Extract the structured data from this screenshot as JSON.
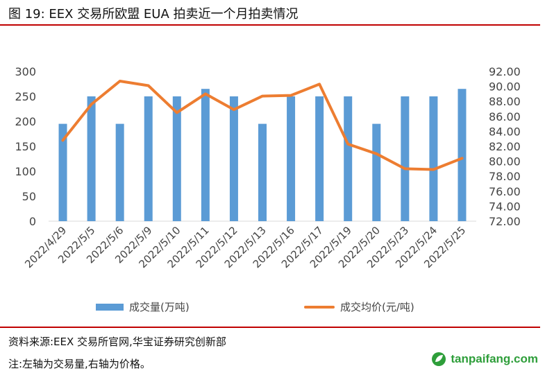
{
  "header": {
    "title": "图 19:  EEX 交易所欧盟 EUA 拍卖近一个月拍卖情况"
  },
  "footer": {
    "source": "资料来源:EEX 交易所官网,华宝证券研究创新部",
    "note": "注:左轴为交易量,右轴为价格。"
  },
  "watermark": {
    "text": "tanpaifang.com"
  },
  "colors": {
    "bar": "#5b9bd5",
    "line": "#ed7d31",
    "rule": "#c00000"
  },
  "chart_data": {
    "type": "bar+line",
    "categories": [
      "2022/4/29",
      "2022/5/5",
      "2022/5/6",
      "2022/5/9",
      "2022/5/10",
      "2022/5/11",
      "2022/5/12",
      "2022/5/13",
      "2022/5/16",
      "2022/5/17",
      "2022/5/19",
      "2022/5/20",
      "2022/5/23",
      "2022/5/24",
      "2022/5/25"
    ],
    "series": [
      {
        "name": "成交量(万吨)",
        "type": "bar",
        "axis": "left",
        "values": [
          195,
          250,
          195,
          250,
          250,
          265,
          250,
          195,
          250,
          250,
          250,
          195,
          250,
          250,
          265
        ]
      },
      {
        "name": "成交均价(元/吨)",
        "type": "line",
        "axis": "right",
        "values": [
          82.8,
          87.6,
          90.7,
          90.1,
          86.5,
          89.0,
          86.9,
          88.7,
          88.8,
          90.3,
          82.3,
          81.0,
          79.0,
          78.9,
          80.4
        ]
      }
    ],
    "left_axis": {
      "min": 0,
      "max": 300,
      "ticks": [
        "0",
        "50",
        "100",
        "150",
        "200",
        "250",
        "300"
      ]
    },
    "right_axis": {
      "min": 72,
      "max": 92,
      "ticks": [
        "72.00",
        "74.00",
        "76.00",
        "78.00",
        "80.00",
        "82.00",
        "84.00",
        "86.00",
        "88.00",
        "90.00",
        "92.00"
      ]
    },
    "legend": [
      "成交量(万吨)",
      "成交均价(元/吨)"
    ],
    "grid": false
  }
}
